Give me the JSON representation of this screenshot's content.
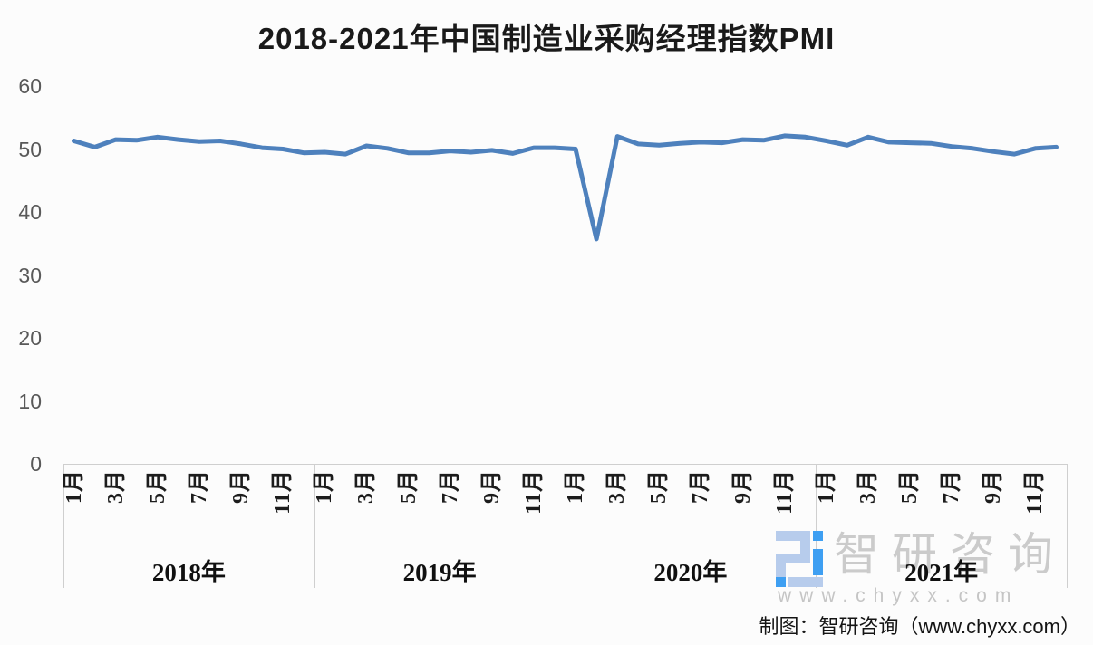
{
  "chart_data": {
    "type": "line",
    "title": "2018-2021年中国制造业采购经理指数PMI",
    "ylabel": "",
    "xlabel": "",
    "ylim": [
      0,
      60
    ],
    "y_ticks": [
      60,
      50,
      40,
      30,
      20,
      10,
      0
    ],
    "month_tick_labels": [
      "1月",
      "3月",
      "5月",
      "7月",
      "9月",
      "11月"
    ],
    "year_labels": [
      "2018年",
      "2019年",
      "2020年",
      "2021年"
    ],
    "months_per_year": 12,
    "grid": false,
    "legend": false,
    "line_color": "#4E81BD",
    "series": [
      {
        "name": "PMI",
        "values": [
          51.3,
          50.3,
          51.5,
          51.4,
          51.9,
          51.5,
          51.2,
          51.3,
          50.8,
          50.2,
          50.0,
          49.4,
          49.5,
          49.2,
          50.5,
          50.1,
          49.4,
          49.4,
          49.7,
          49.5,
          49.8,
          49.3,
          50.2,
          50.2,
          50.0,
          35.7,
          52.0,
          50.8,
          50.6,
          50.9,
          51.1,
          51.0,
          51.5,
          51.4,
          52.1,
          51.9,
          51.3,
          50.6,
          51.9,
          51.1,
          51.0,
          50.9,
          50.4,
          50.1,
          49.6,
          49.2,
          50.1,
          50.3
        ]
      }
    ]
  },
  "watermark": {
    "brand": "智研咨询",
    "url": "www.chyxx.com"
  },
  "footer": {
    "credit": "制图：智研咨询（www.chyxx.com）"
  },
  "colors": {
    "background": "#FCFCFC",
    "line": "#4E81BD",
    "axis_line": "#CFCFCF",
    "y_tick_text": "#595959",
    "category_text": "#1C1C1C",
    "title_text": "#1A1A1A",
    "watermark_gray": "#CBCBCB",
    "logo_light_blue": "#B7CCEC",
    "logo_vivid_blue": "#3E9FF2"
  }
}
